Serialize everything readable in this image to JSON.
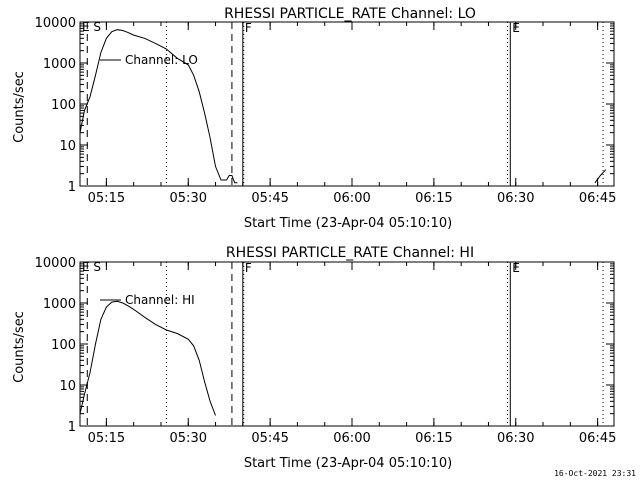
{
  "footer": {
    "timestamp": "16-Oct-2021 23:31"
  },
  "chart_data": [
    {
      "type": "line",
      "title": "RHESSI PARTICLE_RATE Channel: LO",
      "xlabel": "Start Time (23-Apr-04 05:10:10)",
      "ylabel": "Counts/sec",
      "xscale": "time",
      "yscale": "log",
      "xlim": [
        "05:10:10",
        "06:48:00"
      ],
      "ylim": [
        1,
        10000
      ],
      "xticks": [
        "05:15",
        "05:30",
        "05:45",
        "06:00",
        "06:15",
        "06:30",
        "06:45"
      ],
      "yticks": [
        "1",
        "10",
        "100",
        "1000",
        "10000"
      ],
      "series": [
        {
          "name": "Channel: LO",
          "x": [
            "05:10:10",
            "05:11:00",
            "05:12:00",
            "05:13:00",
            "05:14:00",
            "05:15:00",
            "05:16:00",
            "05:17:00",
            "05:18:00",
            "05:19:00",
            "05:20:00",
            "05:22:00",
            "05:24:00",
            "05:26:00",
            "05:28:00",
            "05:30:00",
            "05:31:00",
            "05:32:00",
            "05:33:00",
            "05:34:00",
            "05:35:00",
            "05:36:00",
            "05:37:00",
            "05:37:30",
            "05:38:00",
            "05:38:30",
            "05:39:00",
            "06:44:30",
            "06:45:30",
            "06:46:30"
          ],
          "y": [
            20,
            70,
            150,
            500,
            1800,
            4000,
            5800,
            6500,
            6200,
            5500,
            4800,
            4000,
            3000,
            2200,
            1300,
            900,
            500,
            200,
            60,
            15,
            3,
            1.4,
            1.4,
            1.8,
            1.8,
            1.2,
            1.2,
            1.2,
            1.8,
            2.5
          ]
        }
      ],
      "markers": [
        {
          "label": "F",
          "time": "05:40:00",
          "style": "solid"
        },
        {
          "label": "E",
          "time": "06:29:00",
          "style": "solid"
        },
        {
          "label": "",
          "time": "05:11:30",
          "style": "dashed"
        },
        {
          "label": "",
          "time": "05:38:00",
          "style": "dashed"
        },
        {
          "label": "",
          "time": "05:26:00",
          "style": "dotted"
        },
        {
          "label": "",
          "time": "05:40:10",
          "style": "dotted"
        },
        {
          "label": "",
          "time": "06:28:30",
          "style": "dotted"
        },
        {
          "label": "",
          "time": "06:46:00",
          "style": "dotted"
        }
      ],
      "corner_labels": {
        "left": "E S"
      }
    },
    {
      "type": "line",
      "title": "RHESSI PARTICLE_RATE Channel: HI",
      "xlabel": "Start Time (23-Apr-04 05:10:10)",
      "ylabel": "Counts/sec",
      "xscale": "time",
      "yscale": "log",
      "xlim": [
        "05:10:10",
        "06:48:00"
      ],
      "ylim": [
        1,
        10000
      ],
      "xticks": [
        "05:15",
        "05:30",
        "05:45",
        "06:00",
        "06:15",
        "06:30",
        "06:45"
      ],
      "yticks": [
        "1",
        "10",
        "100",
        "1000",
        "10000"
      ],
      "series": [
        {
          "name": "Channel: HI",
          "x": [
            "05:10:10",
            "05:11:00",
            "05:12:00",
            "05:13:00",
            "05:14:00",
            "05:15:00",
            "05:16:00",
            "05:17:00",
            "05:18:00",
            "05:19:00",
            "05:20:00",
            "05:22:00",
            "05:24:00",
            "05:26:00",
            "05:28:00",
            "05:30:00",
            "05:31:00",
            "05:32:00",
            "05:33:00",
            "05:34:00",
            "05:35:00"
          ],
          "y": [
            2,
            6,
            20,
            100,
            400,
            800,
            1050,
            1100,
            1000,
            850,
            700,
            450,
            300,
            220,
            180,
            130,
            90,
            40,
            12,
            4,
            1.8
          ]
        }
      ],
      "markers": [
        {
          "label": "F",
          "time": "05:40:00",
          "style": "solid"
        },
        {
          "label": "E",
          "time": "06:29:00",
          "style": "solid"
        },
        {
          "label": "",
          "time": "05:11:30",
          "style": "dashed"
        },
        {
          "label": "",
          "time": "05:38:00",
          "style": "dashed"
        },
        {
          "label": "",
          "time": "05:26:00",
          "style": "dotted"
        },
        {
          "label": "",
          "time": "05:40:10",
          "style": "dotted"
        },
        {
          "label": "",
          "time": "06:28:30",
          "style": "dotted"
        },
        {
          "label": "",
          "time": "06:46:00",
          "style": "dotted"
        }
      ],
      "corner_labels": {
        "left": "E S"
      }
    }
  ]
}
